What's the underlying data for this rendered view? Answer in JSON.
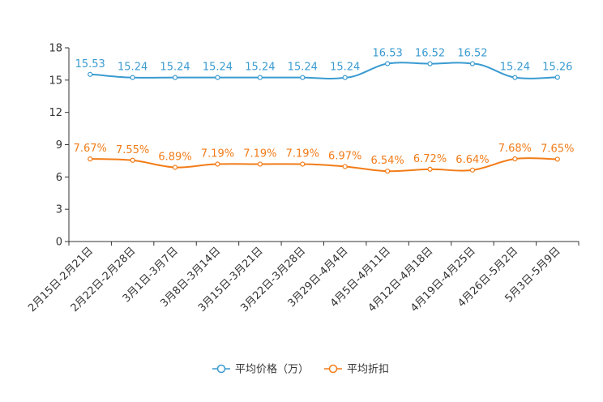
{
  "chart_data": {
    "type": "line",
    "title": "",
    "xlabel": "",
    "ylabel": "",
    "ylim": [
      0,
      18
    ],
    "yticks": [
      0,
      3,
      6,
      9,
      12,
      15,
      18
    ],
    "grid": false,
    "legend_position": "bottom",
    "categories": [
      "2月15日-2月21日",
      "2月22日-2月28日",
      "3月1日-3月7日",
      "3月8日-3月14日",
      "3月15日-3月21日",
      "3月22日-3月28日",
      "3月29日-4月4日",
      "4月5日-4月11日",
      "4月12日-4月18日",
      "4月19日-4月25日",
      "4月26日-5月2日",
      "5月3日-5月9日"
    ],
    "series": [
      {
        "name": "平均价格（万）",
        "color": "#3a9bd1",
        "values": [
          15.53,
          15.24,
          15.24,
          15.24,
          15.24,
          15.24,
          15.24,
          16.53,
          16.52,
          16.52,
          15.24,
          15.26
        ],
        "labels": [
          "15.53",
          "15.24",
          "15.24",
          "15.24",
          "15.24",
          "15.24",
          "15.24",
          "16.53",
          "16.52",
          "16.52",
          "15.24",
          "15.26"
        ]
      },
      {
        "name": "平均折扣",
        "color": "#f27c18",
        "values": [
          7.67,
          7.55,
          6.89,
          7.19,
          7.19,
          7.19,
          6.97,
          6.54,
          6.72,
          6.64,
          7.68,
          7.65
        ],
        "labels": [
          "7.67%",
          "7.55%",
          "6.89%",
          "7.19%",
          "7.19%",
          "7.19%",
          "6.97%",
          "6.54%",
          "6.72%",
          "6.64%",
          "7.68%",
          "7.65%"
        ]
      }
    ]
  }
}
